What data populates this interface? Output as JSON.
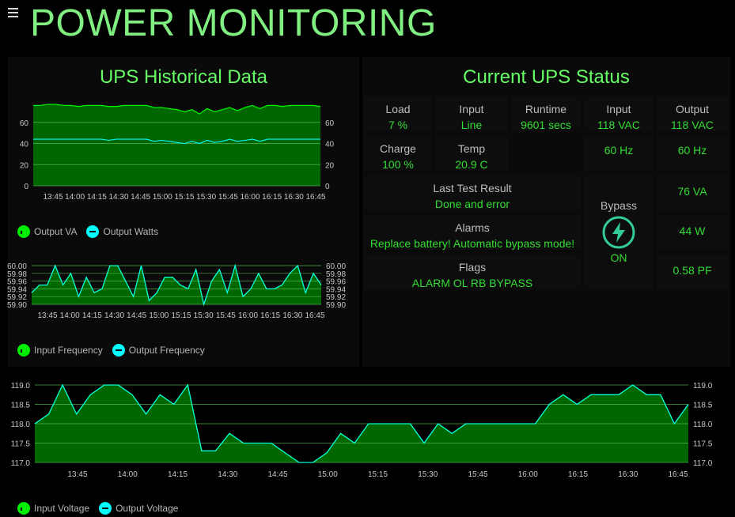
{
  "header": {
    "title": "POWER MONITORING",
    "menu_icon": "hamburger-icon"
  },
  "history": {
    "title": "UPS Historical Data",
    "power_legend": [
      "Output VA",
      "Output Watts"
    ],
    "freq_legend": [
      "Input Frequency",
      "Output Frequency"
    ],
    "volt_legend": [
      "Input Voltage",
      "Output Voltage"
    ]
  },
  "status": {
    "title": "Current UPS Status",
    "load_label": "Load",
    "load_value": "7 %",
    "input_label": "Input",
    "input_value": "Line",
    "runtime_label": "Runtime",
    "runtime_value": "9601 secs",
    "input_v_label": "Input",
    "input_v_value": "118 VAC",
    "output_v_label": "Output",
    "output_v_value": "118 VAC",
    "charge_label": "Charge",
    "charge_value": "100 %",
    "temp_label": "Temp",
    "temp_value": "20.9 C",
    "input_hz": "60 Hz",
    "output_hz": "60 Hz",
    "test_label": "Last Test Result",
    "test_value": "Done and error",
    "alarms_label": "Alarms",
    "alarms_value": "Replace battery! Automatic bypass mode!",
    "flags_label": "Flags",
    "flags_value": "ALARM OL RB BYPASS",
    "bypass_label": "Bypass",
    "bypass_state": "ON",
    "bypass_icon": "lightning-bolt-icon",
    "va": "76 VA",
    "watts": "44 W",
    "pf": "0.58 PF"
  },
  "colors": {
    "accent": "#66ff66",
    "area_fill": "#006600",
    "area_line": "#00ee00",
    "line2": "#00ffff",
    "grid": "#66cc66"
  },
  "chart_data": [
    {
      "type": "area",
      "name": "power",
      "ylim": [
        0,
        80
      ],
      "yticks": [
        0,
        20,
        40,
        60
      ],
      "xtick_labels": [
        "13:45",
        "14:00",
        "14:15",
        "14:30",
        "14:45",
        "15:00",
        "15:15",
        "15:30",
        "15:45",
        "16:00",
        "16:15",
        "16:30",
        "16:45"
      ],
      "series": [
        {
          "name": "Output VA",
          "values": [
            76,
            76,
            77,
            77,
            76,
            76,
            75,
            76,
            76,
            76,
            75,
            75,
            76,
            76,
            76,
            76,
            74,
            74,
            73,
            72,
            70,
            72,
            68,
            73,
            70,
            72,
            74,
            71,
            74,
            76,
            73,
            76,
            76,
            75,
            76,
            76,
            76,
            76,
            75
          ]
        },
        {
          "name": "Output Watts",
          "values": [
            44,
            44,
            44,
            44,
            44,
            44,
            44,
            44,
            44,
            44,
            43,
            44,
            44,
            44,
            44,
            44,
            42,
            43,
            42,
            41,
            40,
            42,
            40,
            43,
            41,
            42,
            44,
            42,
            43,
            44,
            42,
            44,
            44,
            44,
            44,
            44,
            44,
            44,
            44
          ]
        }
      ]
    },
    {
      "type": "area",
      "name": "frequency",
      "ylim": [
        59.9,
        60.0
      ],
      "yticks": [
        59.9,
        59.92,
        59.94,
        59.96,
        59.98,
        60.0
      ],
      "xtick_labels": [
        "13:45",
        "14:00",
        "14:15",
        "14:30",
        "14:45",
        "15:00",
        "15:15",
        "15:30",
        "15:45",
        "16:00",
        "16:15",
        "16:30",
        "16:45"
      ],
      "series": [
        {
          "name": "Input Frequency",
          "values": [
            59.93,
            59.95,
            59.95,
            60.0,
            59.95,
            59.98,
            59.92,
            59.97,
            59.93,
            59.94,
            60.0,
            60.0,
            59.96,
            59.92,
            60.0,
            59.91,
            59.93,
            59.97,
            59.97,
            59.95,
            59.94,
            59.99,
            59.9,
            59.96,
            59.99,
            59.93,
            60.0,
            59.92,
            59.94,
            59.98,
            59.94,
            59.94,
            59.95,
            59.98,
            60.0,
            59.93,
            59.98,
            59.95
          ]
        },
        {
          "name": "Output Frequency",
          "values": [
            59.93,
            59.95,
            59.95,
            60.0,
            59.95,
            59.98,
            59.92,
            59.97,
            59.93,
            59.94,
            60.0,
            60.0,
            59.96,
            59.92,
            60.0,
            59.91,
            59.93,
            59.97,
            59.97,
            59.95,
            59.94,
            59.99,
            59.9,
            59.96,
            59.99,
            59.93,
            60.0,
            59.92,
            59.94,
            59.98,
            59.94,
            59.94,
            59.95,
            59.98,
            60.0,
            59.93,
            59.98,
            59.95
          ]
        }
      ]
    },
    {
      "type": "area",
      "name": "voltage",
      "ylim": [
        117.0,
        119.0
      ],
      "yticks": [
        117.0,
        117.5,
        118.0,
        118.5,
        119.0
      ],
      "xtick_labels": [
        "13:45",
        "14:00",
        "14:15",
        "14:30",
        "14:45",
        "15:00",
        "15:15",
        "15:30",
        "15:45",
        "16:00",
        "16:15",
        "16:30",
        "16:45"
      ],
      "series": [
        {
          "name": "Input Voltage",
          "values": [
            118.0,
            118.25,
            119.0,
            118.25,
            118.75,
            119.0,
            119.0,
            118.75,
            118.25,
            118.75,
            118.5,
            119.0,
            117.3,
            117.3,
            117.75,
            117.5,
            117.5,
            117.5,
            117.25,
            117.0,
            117.0,
            117.25,
            117.75,
            117.5,
            118.0,
            118.0,
            118.0,
            118.0,
            117.5,
            118.0,
            117.75,
            118.0,
            118.0,
            118.0,
            118.0,
            118.0,
            118.0,
            118.5,
            118.75,
            118.5,
            118.75,
            118.75,
            118.75,
            119.0,
            118.75,
            118.75,
            118.0,
            118.5
          ]
        },
        {
          "name": "Output Voltage",
          "values": [
            118.0,
            118.25,
            119.0,
            118.25,
            118.75,
            119.0,
            119.0,
            118.75,
            118.25,
            118.75,
            118.5,
            119.0,
            117.3,
            117.3,
            117.75,
            117.5,
            117.5,
            117.5,
            117.25,
            117.0,
            117.0,
            117.25,
            117.75,
            117.5,
            118.0,
            118.0,
            118.0,
            118.0,
            117.5,
            118.0,
            117.75,
            118.0,
            118.0,
            118.0,
            118.0,
            118.0,
            118.0,
            118.5,
            118.75,
            118.5,
            118.75,
            118.75,
            118.75,
            119.0,
            118.75,
            118.75,
            118.0,
            118.5
          ]
        }
      ]
    }
  ]
}
